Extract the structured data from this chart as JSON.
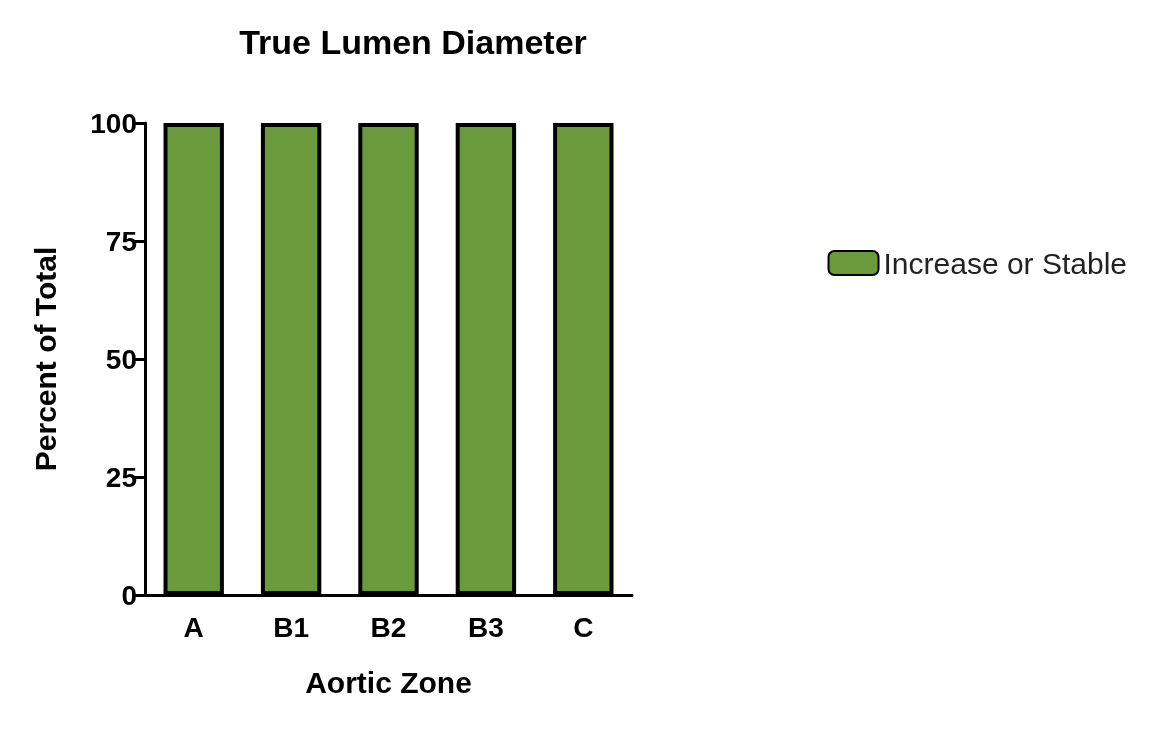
{
  "chart_data": {
    "type": "bar",
    "title": "True Lumen Diameter",
    "xlabel": "Aortic Zone",
    "ylabel": "Percent of Total",
    "categories": [
      "A",
      "B1",
      "B2",
      "B3",
      "C"
    ],
    "series": [
      {
        "name": "Increase or Stable",
        "color": "#6b9a3c",
        "values": [
          100,
          100,
          100,
          100,
          100
        ]
      }
    ],
    "ylim": [
      0,
      100
    ],
    "yticks": [
      0,
      25,
      50,
      75,
      100
    ],
    "grid": false,
    "legend": "right"
  }
}
